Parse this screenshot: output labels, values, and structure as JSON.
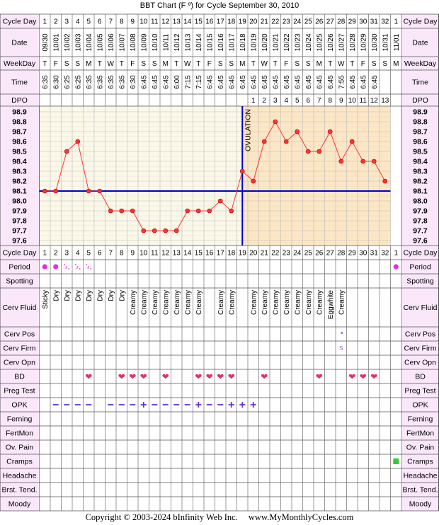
{
  "title": "BBT Chart (F º) for Cycle September 30, 2010",
  "footer": {
    "copyright": "Copyright © 2003-2024 bInfinity Web Inc.",
    "website": "www.MyMonthlyCycles.com"
  },
  "rows": {
    "cycle_day": "Cycle Day",
    "date": "Date",
    "weekday": "WeekDay",
    "time": "Time",
    "dpo": "DPO",
    "period": "Period",
    "spotting": "Spotting",
    "cerv_fluid": "Cerv Fluid",
    "cerv_pos": "Cerv Pos",
    "cerv_firm": "Cerv Firm",
    "cerv_opn": "Cerv Opn",
    "bd": "BD",
    "preg_test": "Preg Test",
    "opk": "OPK",
    "ferning": "Ferning",
    "fertmon": "FertMon",
    "ov_pain": "Ov. Pain",
    "cramps": "Cramps",
    "headache": "Headache",
    "brst_tend": "Brst. Tend.",
    "moody": "Moody"
  },
  "columns": {
    "cycle_days": [
      "1",
      "2",
      "3",
      "4",
      "5",
      "6",
      "7",
      "8",
      "9",
      "10",
      "11",
      "12",
      "13",
      "14",
      "15",
      "16",
      "17",
      "18",
      "19",
      "20",
      "21",
      "22",
      "23",
      "24",
      "25",
      "26",
      "27",
      "28",
      "29",
      "30",
      "31",
      "32",
      "1"
    ],
    "dates": [
      "09/30",
      "10/01",
      "10/02",
      "10/03",
      "10/04",
      "10/05",
      "10/06",
      "10/07",
      "10/08",
      "10/09",
      "10/10",
      "10/11",
      "10/12",
      "10/13",
      "10/14",
      "10/15",
      "10/16",
      "10/17",
      "10/18",
      "10/19",
      "10/20",
      "10/21",
      "10/22",
      "10/23",
      "10/24",
      "10/25",
      "10/26",
      "10/27",
      "10/28",
      "10/29",
      "10/30",
      "10/31",
      "11/01"
    ],
    "weekdays": [
      "T",
      "F",
      "S",
      "S",
      "M",
      "T",
      "W",
      "T",
      "F",
      "S",
      "S",
      "M",
      "T",
      "W",
      "T",
      "F",
      "S",
      "S",
      "M",
      "T",
      "W",
      "T",
      "F",
      "S",
      "S",
      "M",
      "T",
      "W",
      "T",
      "F",
      "S",
      "S",
      "M"
    ],
    "times": [
      "6:35",
      "6:30",
      "6:25",
      "6:25",
      "6:35",
      "6:35",
      "6:35",
      "6:35",
      "6:30",
      "6:45",
      "6:45",
      "6:45",
      "6:00",
      "7:15",
      "7:15",
      "6:45",
      "6:45",
      "6:45",
      "6:45",
      "6:45",
      "6:45",
      "6:45",
      "6:45",
      "6:45",
      "6:45",
      "6:45",
      "6:45",
      "7:55",
      "6:45",
      "6:45",
      "6:45",
      "",
      ""
    ],
    "dpo": [
      "",
      "",
      "",
      "",
      "",
      "",
      "",
      "",
      "",
      "",
      "",
      "",
      "",
      "",
      "",
      "",
      "",
      "",
      "",
      "1",
      "2",
      "3",
      "4",
      "5",
      "6",
      "7",
      "8",
      "9",
      "10",
      "11",
      "12",
      "13",
      ""
    ]
  },
  "chart_data": {
    "type": "line",
    "unit": "F º",
    "y_ticks": [
      "98.9",
      "98.8",
      "98.7",
      "98.6",
      "98.5",
      "98.4",
      "98.3",
      "98.2",
      "98.1",
      "98.0",
      "97.9",
      "97.8",
      "97.7",
      "97.6"
    ],
    "ylim": [
      97.6,
      98.9
    ],
    "x": [
      1,
      2,
      3,
      4,
      5,
      6,
      7,
      8,
      9,
      10,
      11,
      12,
      13,
      14,
      15,
      16,
      17,
      18,
      19,
      20,
      21,
      22,
      23,
      24,
      25,
      26,
      27,
      28,
      29,
      30,
      31,
      32
    ],
    "temps": [
      98.1,
      98.1,
      98.5,
      98.6,
      98.1,
      98.1,
      97.9,
      97.9,
      97.9,
      97.7,
      97.7,
      97.7,
      97.7,
      97.9,
      97.9,
      97.9,
      98.0,
      97.9,
      98.3,
      98.2,
      98.6,
      98.8,
      98.6,
      98.7,
      98.5,
      98.5,
      98.7,
      98.4,
      98.6,
      98.4,
      98.4,
      98.2
    ],
    "coverline": 98.1,
    "ovulation_day": 19,
    "ovulation_label": "OVULATION",
    "colors": {
      "line": "#ff3333",
      "point": "#ff3333",
      "coverline": "#0000cc",
      "ovulation": "#0000cc",
      "pre_bg": "#fbf8e8",
      "post_bg": "#fce6c4",
      "grid": "#bdbdbd",
      "header_bg": "#fae8fa",
      "border": "#555555"
    }
  },
  "observations": {
    "period": {
      "1": "heavy-dot",
      "2": "heavy-dot",
      "3": "light-dots",
      "4": "light-dots",
      "5": "light-dots",
      "33": "heavy-dot"
    },
    "cerv_fluid": {
      "1": "Sticky",
      "2": "Dry",
      "3": "Dry",
      "4": "Dry",
      "5": "Dry",
      "6": "Dry",
      "7": "Dry",
      "8": "Dry",
      "9": "Creamy",
      "10": "Creamy",
      "11": "Creamy",
      "12": "Creamy",
      "13": "Creamy",
      "14": "Creamy",
      "15": "Creamy",
      "17": "Creamy",
      "18": "Creamy",
      "20": "Creamy",
      "21": "Creamy",
      "22": "Creamy",
      "23": "Creamy",
      "24": "Creamy",
      "25": "Creamy",
      "26": "Creamy",
      "27": "Eggwhite",
      "28": "Creamy"
    },
    "cerv_pos": {
      "28": "•"
    },
    "cerv_firm": {
      "28": "S"
    },
    "bd": [
      5,
      8,
      9,
      10,
      12,
      15,
      16,
      17,
      18,
      21,
      26,
      29,
      30,
      31
    ],
    "opk": {
      "2": "neg",
      "3": "neg",
      "4": "neg",
      "5": "neg",
      "7": "neg",
      "8": "neg",
      "9": "neg",
      "10": "pos",
      "11": "neg",
      "12": "neg",
      "13": "neg",
      "14": "neg",
      "15": "pos",
      "16": "neg",
      "17": "neg",
      "18": "pos",
      "19": "pos",
      "20": "pos"
    },
    "opk_symbols": {
      "neg": "−",
      "pos": "+"
    },
    "cramps": [
      33
    ],
    "symbols": {
      "bd": "❤",
      "period_heavy": "●",
      "period_light": "⁘"
    },
    "symbol_colors": {
      "period": "#dd33dd",
      "bd": "#e0306a",
      "opk": "#6633cc",
      "cramps": "#33cc33",
      "cerv": "#9966cc"
    }
  }
}
